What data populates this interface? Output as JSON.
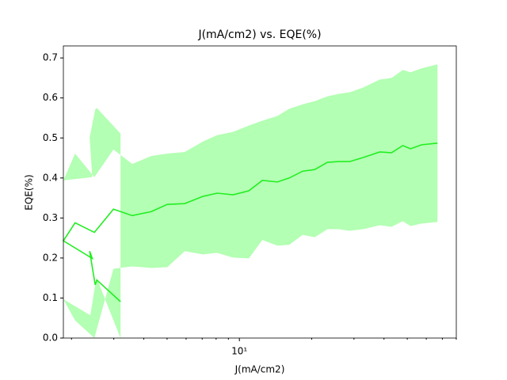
{
  "chart_data": {
    "type": "line",
    "title": "J(mA/cm2) vs. EQE(%)",
    "x_label": "J(mA/cm2)",
    "y_label": "EQE(%)",
    "x_scale": "log",
    "x": [
      3.2,
      2.55,
      2.51,
      2.38,
      2.44,
      1.85,
      2.07,
      2.49,
      2.99,
      3.58,
      4.3,
      5.01,
      5.92,
      7.05,
      8.08,
      9.41,
      10.95,
      12.46,
      14.39,
      16.13,
      18.35,
      20.59,
      23.24,
      25.86,
      28.77,
      32.73,
      38.4,
      43.0,
      47.9,
      51.6,
      57.4,
      66.8
    ],
    "series": [
      {
        "color": "#22ee22",
        "band_color": "#b3ffb3",
        "values": [
          0.091,
          0.145,
          0.133,
          0.217,
          0.199,
          0.243,
          0.288,
          0.264,
          0.322,
          0.306,
          0.316,
          0.334,
          0.336,
          0.354,
          0.362,
          0.358,
          0.368,
          0.394,
          0.39,
          0.4,
          0.417,
          0.421,
          0.439,
          0.441,
          0.441,
          0.451,
          0.465,
          0.463,
          0.481,
          0.473,
          0.483,
          0.487
        ],
        "upper": [
          0.511,
          0.575,
          0.571,
          0.501,
          0.402,
          0.394,
          0.461,
          0.402,
          0.471,
          0.435,
          0.455,
          0.461,
          0.465,
          0.491,
          0.507,
          0.515,
          0.531,
          0.543,
          0.555,
          0.573,
          0.584,
          0.592,
          0.604,
          0.61,
          0.614,
          0.626,
          0.646,
          0.65,
          0.67,
          0.664,
          0.674,
          0.684
        ],
        "lower": [
          0,
          0.149,
          0.133,
          0.046,
          0.054,
          0.097,
          0.044,
          0,
          0.173,
          0.179,
          0.175,
          0.177,
          0.217,
          0.209,
          0.213,
          0.201,
          0.199,
          0.245,
          0.231,
          0.233,
          0.258,
          0.252,
          0.272,
          0.272,
          0.268,
          0.272,
          0.282,
          0.278,
          0.292,
          0.28,
          0.286,
          0.29
        ]
      }
    ],
    "xlim": [
      1.85,
      80
    ],
    "xticks": [
      {
        "value": 10,
        "label": "10¹"
      }
    ],
    "xminorticks": [
      2,
      3,
      4,
      5,
      6,
      7,
      8,
      9,
      20,
      30,
      40,
      50,
      60,
      70,
      80
    ],
    "ylim": [
      0,
      0.73
    ],
    "yticks": [
      {
        "value": 0,
        "label": "0.0"
      },
      0.1,
      0.2,
      0.3,
      0.4,
      0.5,
      0.6,
      0.7
    ]
  }
}
